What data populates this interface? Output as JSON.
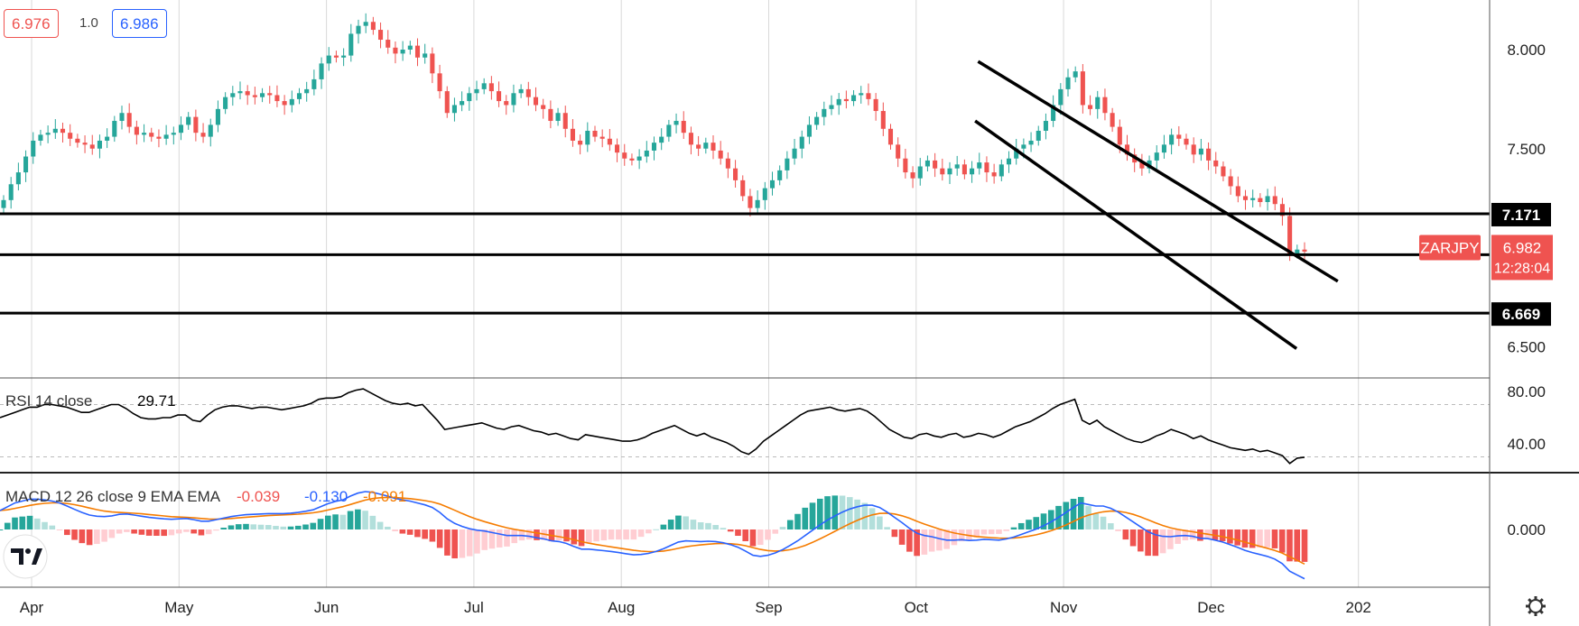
{
  "quote_bar": {
    "sell_price": "6.976",
    "spread": "1.0",
    "buy_price": "6.986"
  },
  "symbol": "ZARJPY",
  "countdown": "12:28:04",
  "colors": {
    "up": "#26a69a",
    "down": "#ef5350",
    "rsi_line": "#000000",
    "macd_line": "#2962ff",
    "signal_line": "#f57c00",
    "hist_pos": "#26a69a",
    "hist_neg": "#ef5350"
  },
  "logo_icon": "tradingview-logo-icon",
  "settings_icon": "gear-icon",
  "chart_data": [
    {
      "type": "candlestick",
      "pane": "price",
      "x_labels": [
        "Apr",
        "May",
        "Jun",
        "Jul",
        "Aug",
        "Sep",
        "Oct",
        "Nov",
        "Dec",
        "202"
      ],
      "x_months_from_apr1": [
        0,
        1,
        2,
        3,
        4,
        5,
        6,
        7,
        8,
        9
      ],
      "y_ticks": [
        8.0,
        7.5,
        6.5
      ],
      "y_tick_labels": [
        "8.000",
        "7.500",
        "6.500"
      ],
      "ylim": [
        6.4,
        8.18
      ],
      "last_price": 6.982,
      "last_price_label": "6.982",
      "levels": [
        {
          "value": 7.171,
          "label": "7.171"
        },
        {
          "value": 6.964,
          "label": "6.964"
        },
        {
          "value": 6.669,
          "label": "6.669"
        }
      ],
      "channel_lines": [
        {
          "start": {
            "month": 6.42,
            "price": 7.94
          },
          "end": {
            "month": 8.86,
            "price": 6.83
          }
        },
        {
          "start": {
            "month": 6.4,
            "price": 7.64
          },
          "end": {
            "month": 8.58,
            "price": 6.49
          }
        }
      ],
      "close_series": [
        7.24,
        7.32,
        7.38,
        7.46,
        7.54,
        7.57,
        7.58,
        7.6,
        7.58,
        7.55,
        7.53,
        7.52,
        7.5,
        7.54,
        7.56,
        7.64,
        7.68,
        7.61,
        7.57,
        7.58,
        7.56,
        7.55,
        7.57,
        7.58,
        7.62,
        7.66,
        7.58,
        7.56,
        7.62,
        7.7,
        7.76,
        7.78,
        7.79,
        7.77,
        7.76,
        7.78,
        7.77,
        7.74,
        7.72,
        7.75,
        7.78,
        7.8,
        7.85,
        7.93,
        7.97,
        7.96,
        7.97,
        8.08,
        8.12,
        8.14,
        8.1,
        8.05,
        8.01,
        7.98,
        8.0,
        8.02,
        7.96,
        7.98,
        7.88,
        7.79,
        7.68,
        7.72,
        7.74,
        7.78,
        7.8,
        7.83,
        7.79,
        7.74,
        7.72,
        7.78,
        7.8,
        7.76,
        7.72,
        7.7,
        7.64,
        7.68,
        7.6,
        7.54,
        7.52,
        7.59,
        7.56,
        7.55,
        7.52,
        7.48,
        7.45,
        7.44,
        7.46,
        7.49,
        7.53,
        7.56,
        7.62,
        7.64,
        7.58,
        7.52,
        7.5,
        7.53,
        7.49,
        7.45,
        7.4,
        7.34,
        7.26,
        7.2,
        7.24,
        7.3,
        7.34,
        7.39,
        7.45,
        7.5,
        7.56,
        7.62,
        7.66,
        7.7,
        7.72,
        7.75,
        7.74,
        7.77,
        7.78,
        7.75,
        7.69,
        7.6,
        7.52,
        7.45,
        7.38,
        7.35,
        7.41,
        7.44,
        7.4,
        7.37,
        7.4,
        7.42,
        7.37,
        7.4,
        7.43,
        7.38,
        7.36,
        7.42,
        7.45,
        7.5,
        7.52,
        7.54,
        7.59,
        7.64,
        7.72,
        7.8,
        7.86,
        7.89,
        7.72,
        7.7,
        7.76,
        7.68,
        7.61,
        7.52,
        7.47,
        7.43,
        7.4,
        7.44,
        7.48,
        7.52,
        7.57,
        7.55,
        7.52,
        7.47,
        7.5,
        7.44,
        7.41,
        7.36,
        7.31,
        7.26,
        7.24,
        7.25,
        7.23,
        7.26,
        7.22,
        7.16,
        6.97,
        6.99,
        6.98
      ]
    },
    {
      "type": "line",
      "pane": "rsi",
      "title": "RSI 14 close",
      "last_value": "29.71",
      "y_ticks": [
        80,
        40
      ],
      "y_tick_labels": [
        "80.00",
        "40.00"
      ],
      "ylim": [
        16,
        90
      ],
      "bands": [
        70,
        30
      ],
      "values": [
        60,
        62,
        64,
        66,
        68,
        68,
        70,
        70,
        69,
        68,
        66,
        64,
        64,
        66,
        68,
        70,
        70,
        67,
        63,
        60,
        59,
        59,
        60,
        60,
        62,
        62,
        58,
        57,
        62,
        66,
        68,
        69,
        69,
        68,
        67,
        68,
        68,
        67,
        66,
        67,
        68,
        69,
        71,
        74,
        75,
        75,
        76,
        79,
        81,
        82,
        79,
        76,
        73,
        71,
        70,
        71,
        69,
        70,
        64,
        58,
        51,
        52,
        53,
        54,
        55,
        56,
        54,
        52,
        51,
        53,
        54,
        52,
        50,
        49,
        47,
        48,
        46,
        44,
        43,
        47,
        46,
        45,
        44,
        43,
        42,
        42,
        43,
        45,
        48,
        50,
        52,
        54,
        51,
        48,
        46,
        48,
        45,
        43,
        41,
        38,
        34,
        32,
        36,
        42,
        46,
        50,
        54,
        58,
        62,
        65,
        66,
        67,
        68,
        66,
        65,
        66,
        67,
        65,
        61,
        56,
        51,
        48,
        45,
        44,
        47,
        48,
        46,
        45,
        47,
        48,
        45,
        46,
        48,
        47,
        45,
        47,
        50,
        53,
        55,
        57,
        60,
        63,
        67,
        70,
        72,
        74,
        58,
        55,
        58,
        53,
        50,
        47,
        44,
        42,
        41,
        43,
        46,
        48,
        51,
        49,
        47,
        44,
        46,
        43,
        41,
        39,
        37,
        36,
        35,
        36,
        34,
        35,
        33,
        31,
        25,
        29,
        29.71
      ]
    },
    {
      "type": "line+histogram",
      "pane": "macd",
      "title": "MACD 12 26 close 9 EMA EMA",
      "histogram_value": "-0.039",
      "macd_value": "-0.130",
      "signal_value": "-0.091",
      "y_ticks": [
        0.0
      ],
      "y_tick_labels": [
        "0.000"
      ],
      "ylim": [
        -0.16,
        0.14
      ],
      "macd": [
        0.05,
        0.06,
        0.07,
        0.075,
        0.08,
        0.08,
        0.078,
        0.075,
        0.07,
        0.062,
        0.053,
        0.045,
        0.038,
        0.035,
        0.034,
        0.036,
        0.04,
        0.041,
        0.038,
        0.035,
        0.032,
        0.03,
        0.028,
        0.027,
        0.028,
        0.029,
        0.026,
        0.022,
        0.022,
        0.026,
        0.03,
        0.034,
        0.037,
        0.039,
        0.04,
        0.041,
        0.042,
        0.042,
        0.042,
        0.043,
        0.045,
        0.048,
        0.052,
        0.06,
        0.068,
        0.074,
        0.078,
        0.088,
        0.096,
        0.1,
        0.098,
        0.093,
        0.088,
        0.082,
        0.078,
        0.075,
        0.07,
        0.065,
        0.058,
        0.045,
        0.028,
        0.016,
        0.008,
        0.002,
        -0.002,
        -0.004,
        -0.008,
        -0.012,
        -0.016,
        -0.016,
        -0.016,
        -0.018,
        -0.022,
        -0.025,
        -0.03,
        -0.032,
        -0.037,
        -0.045,
        -0.052,
        -0.052,
        -0.054,
        -0.056,
        -0.058,
        -0.061,
        -0.064,
        -0.067,
        -0.066,
        -0.063,
        -0.058,
        -0.051,
        -0.042,
        -0.033,
        -0.03,
        -0.031,
        -0.032,
        -0.031,
        -0.032,
        -0.035,
        -0.04,
        -0.047,
        -0.057,
        -0.068,
        -0.071,
        -0.068,
        -0.062,
        -0.053,
        -0.042,
        -0.03,
        -0.016,
        -0.002,
        0.012,
        0.025,
        0.036,
        0.046,
        0.054,
        0.06,
        0.064,
        0.064,
        0.058,
        0.046,
        0.032,
        0.018,
        0.003,
        -0.01,
        -0.016,
        -0.019,
        -0.024,
        -0.028,
        -0.028,
        -0.027,
        -0.029,
        -0.028,
        -0.026,
        -0.027,
        -0.028,
        -0.025,
        -0.02,
        -0.013,
        -0.006,
        0.001,
        0.01,
        0.02,
        0.032,
        0.045,
        0.058,
        0.07,
        0.066,
        0.062,
        0.062,
        0.056,
        0.046,
        0.033,
        0.02,
        0.007,
        -0.006,
        -0.014,
        -0.018,
        -0.019,
        -0.017,
        -0.016,
        -0.018,
        -0.023,
        -0.024,
        -0.028,
        -0.033,
        -0.04,
        -0.047,
        -0.055,
        -0.061,
        -0.066,
        -0.071,
        -0.078,
        -0.09,
        -0.11,
        -0.12,
        -0.13
      ]
    }
  ]
}
